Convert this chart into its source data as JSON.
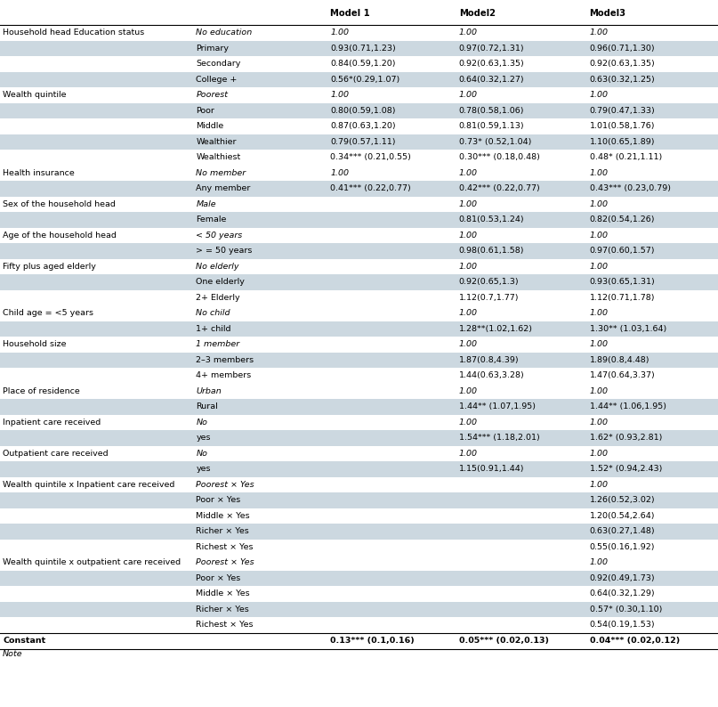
{
  "headers": [
    "Model 1",
    "Model2",
    "Model3"
  ],
  "rows": [
    {
      "cat": "Household head Education status",
      "sub": "No education",
      "m1": "1.00",
      "m2": "1.00",
      "m3": "1.00",
      "italic_sub": true,
      "shaded": false
    },
    {
      "cat": "",
      "sub": "Primary",
      "m1": "0.93(0.71,1.23)",
      "m2": "0.97(0.72,1.31)",
      "m3": "0.96(0.71,1.30)",
      "italic_sub": false,
      "shaded": true
    },
    {
      "cat": "",
      "sub": "Secondary",
      "m1": "0.84(0.59,1.20)",
      "m2": "0.92(0.63,1.35)",
      "m3": "0.92(0.63,1.35)",
      "italic_sub": false,
      "shaded": false
    },
    {
      "cat": "",
      "sub": "College +",
      "m1": "0.56*(0.29,1.07)",
      "m2": "0.64(0.32,1.27)",
      "m3": "0.63(0.32,1.25)",
      "italic_sub": false,
      "shaded": true
    },
    {
      "cat": "Wealth quintile",
      "sub": "Poorest",
      "m1": "1.00",
      "m2": "1.00",
      "m3": "1.00",
      "italic_sub": true,
      "shaded": false
    },
    {
      "cat": "",
      "sub": "Poor",
      "m1": "0.80(0.59,1.08)",
      "m2": "0.78(0.58,1.06)",
      "m3": "0.79(0.47,1.33)",
      "italic_sub": false,
      "shaded": true
    },
    {
      "cat": "",
      "sub": "Middle",
      "m1": "0.87(0.63,1.20)",
      "m2": "0.81(0.59,1.13)",
      "m3": "1.01(0.58,1.76)",
      "italic_sub": false,
      "shaded": false
    },
    {
      "cat": "",
      "sub": "Wealthier",
      "m1": "0.79(0.57,1.11)",
      "m2": "0.73* (0.52,1.04)",
      "m3": "1.10(0.65,1.89)",
      "italic_sub": false,
      "shaded": true
    },
    {
      "cat": "",
      "sub": "Wealthiest",
      "m1": "0.34*** (0.21,0.55)",
      "m2": "0.30*** (0.18,0.48)",
      "m3": "0.48* (0.21,1.11)",
      "italic_sub": false,
      "shaded": false
    },
    {
      "cat": "Health insurance",
      "sub": "No member",
      "m1": "1.00",
      "m2": "1.00",
      "m3": "1.00",
      "italic_sub": true,
      "shaded": false
    },
    {
      "cat": "",
      "sub": "Any member",
      "m1": "0.41*** (0.22,0.77)",
      "m2": "0.42*** (0.22,0.77)",
      "m3": "0.43*** (0.23,0.79)",
      "italic_sub": false,
      "shaded": true
    },
    {
      "cat": "Sex of the household head",
      "sub": "Male",
      "m1": "",
      "m2": "1.00",
      "m3": "1.00",
      "italic_sub": true,
      "shaded": false
    },
    {
      "cat": "",
      "sub": "Female",
      "m1": "",
      "m2": "0.81(0.53,1.24)",
      "m3": "0.82(0.54,1.26)",
      "italic_sub": false,
      "shaded": true
    },
    {
      "cat": "Age of the household head",
      "sub": "< 50 years",
      "m1": "",
      "m2": "1.00",
      "m3": "1.00",
      "italic_sub": true,
      "shaded": false
    },
    {
      "cat": "",
      "sub": "> = 50 years",
      "m1": "",
      "m2": "0.98(0.61,1.58)",
      "m3": "0.97(0.60,1.57)",
      "italic_sub": false,
      "shaded": true
    },
    {
      "cat": "Fifty plus aged elderly",
      "sub": "No elderly",
      "m1": "",
      "m2": "1.00",
      "m3": "1.00",
      "italic_sub": true,
      "shaded": false
    },
    {
      "cat": "",
      "sub": "One elderly",
      "m1": "",
      "m2": "0.92(0.65,1.3)",
      "m3": "0.93(0.65,1.31)",
      "italic_sub": false,
      "shaded": true
    },
    {
      "cat": "",
      "sub": "2+ Elderly",
      "m1": "",
      "m2": "1.12(0.7,1.77)",
      "m3": "1.12(0.71,1.78)",
      "italic_sub": false,
      "shaded": false
    },
    {
      "cat": "Child age = <5 years",
      "sub": "No child",
      "m1": "",
      "m2": "1.00",
      "m3": "1.00",
      "italic_sub": true,
      "shaded": false
    },
    {
      "cat": "",
      "sub": "1+ child",
      "m1": "",
      "m2": "1.28**(1.02,1.62)",
      "m3": "1.30** (1.03,1.64)",
      "italic_sub": false,
      "shaded": true
    },
    {
      "cat": "Household size",
      "sub": "1 member",
      "m1": "",
      "m2": "1.00",
      "m3": "1.00",
      "italic_sub": true,
      "shaded": false
    },
    {
      "cat": "",
      "sub": "2–3 members",
      "m1": "",
      "m2": "1.87(0.8,4.39)",
      "m3": "1.89(0.8,4.48)",
      "italic_sub": false,
      "shaded": true
    },
    {
      "cat": "",
      "sub": "4+ members",
      "m1": "",
      "m2": "1.44(0.63,3.28)",
      "m3": "1.47(0.64,3.37)",
      "italic_sub": false,
      "shaded": false
    },
    {
      "cat": "Place of residence",
      "sub": "Urban",
      "m1": "",
      "m2": "1.00",
      "m3": "1.00",
      "italic_sub": true,
      "shaded": false
    },
    {
      "cat": "",
      "sub": "Rural",
      "m1": "",
      "m2": "1.44** (1.07,1.95)",
      "m3": "1.44** (1.06,1.95)",
      "italic_sub": false,
      "shaded": true
    },
    {
      "cat": "Inpatient care received",
      "sub": "No",
      "m1": "",
      "m2": "1.00",
      "m3": "1.00",
      "italic_sub": true,
      "shaded": false
    },
    {
      "cat": "",
      "sub": "yes",
      "m1": "",
      "m2": "1.54*** (1.18,2.01)",
      "m3": "1.62* (0.93,2.81)",
      "italic_sub": false,
      "shaded": true
    },
    {
      "cat": "Outpatient care received",
      "sub": "No",
      "m1": "",
      "m2": "1.00",
      "m3": "1.00",
      "italic_sub": true,
      "shaded": false
    },
    {
      "cat": "",
      "sub": "yes",
      "m1": "",
      "m2": "1.15(0.91,1.44)",
      "m3": "1.52* (0.94,2.43)",
      "italic_sub": false,
      "shaded": true
    },
    {
      "cat": "Wealth quintile x Inpatient care received",
      "sub": "Poorest × Yes",
      "m1": "",
      "m2": "",
      "m3": "1.00",
      "italic_sub": true,
      "shaded": false
    },
    {
      "cat": "",
      "sub": "Poor × Yes",
      "m1": "",
      "m2": "",
      "m3": "1.26(0.52,3.02)",
      "italic_sub": false,
      "shaded": true
    },
    {
      "cat": "",
      "sub": "Middle × Yes",
      "m1": "",
      "m2": "",
      "m3": "1.20(0.54,2.64)",
      "italic_sub": false,
      "shaded": false
    },
    {
      "cat": "",
      "sub": "Richer × Yes",
      "m1": "",
      "m2": "",
      "m3": "0.63(0.27,1.48)",
      "italic_sub": false,
      "shaded": true
    },
    {
      "cat": "",
      "sub": "Richest × Yes",
      "m1": "",
      "m2": "",
      "m3": "0.55(0.16,1.92)",
      "italic_sub": false,
      "shaded": false
    },
    {
      "cat": "Wealth quintile x outpatient care received",
      "sub": "Poorest × Yes",
      "m1": "",
      "m2": "",
      "m3": "1.00",
      "italic_sub": true,
      "shaded": false
    },
    {
      "cat": "",
      "sub": "Poor × Yes",
      "m1": "",
      "m2": "",
      "m3": "0.92(0.49,1.73)",
      "italic_sub": false,
      "shaded": true
    },
    {
      "cat": "",
      "sub": "Middle × Yes",
      "m1": "",
      "m2": "",
      "m3": "0.64(0.32,1.29)",
      "italic_sub": false,
      "shaded": false
    },
    {
      "cat": "",
      "sub": "Richer × Yes",
      "m1": "",
      "m2": "",
      "m3": "0.57* (0.30,1.10)",
      "italic_sub": false,
      "shaded": true
    },
    {
      "cat": "",
      "sub": "Richest × Yes",
      "m1": "",
      "m2": "",
      "m3": "0.54(0.19,1.53)",
      "italic_sub": false,
      "shaded": false
    }
  ],
  "constant_row": {
    "cat": "Constant",
    "m1": "0.13*** (0.1,0.16)",
    "m2": "0.05*** (0.02,0.13)",
    "m3": "0.04*** (0.02,0.12)"
  },
  "bg_color": "#ffffff",
  "shade_color": "#ccd8e0",
  "col_cat": 0.0,
  "col_sub": 0.268,
  "col_m1": 0.452,
  "col_m2": 0.634,
  "col_m3": 0.816,
  "font_size": 6.8,
  "header_font_size": 7.2
}
